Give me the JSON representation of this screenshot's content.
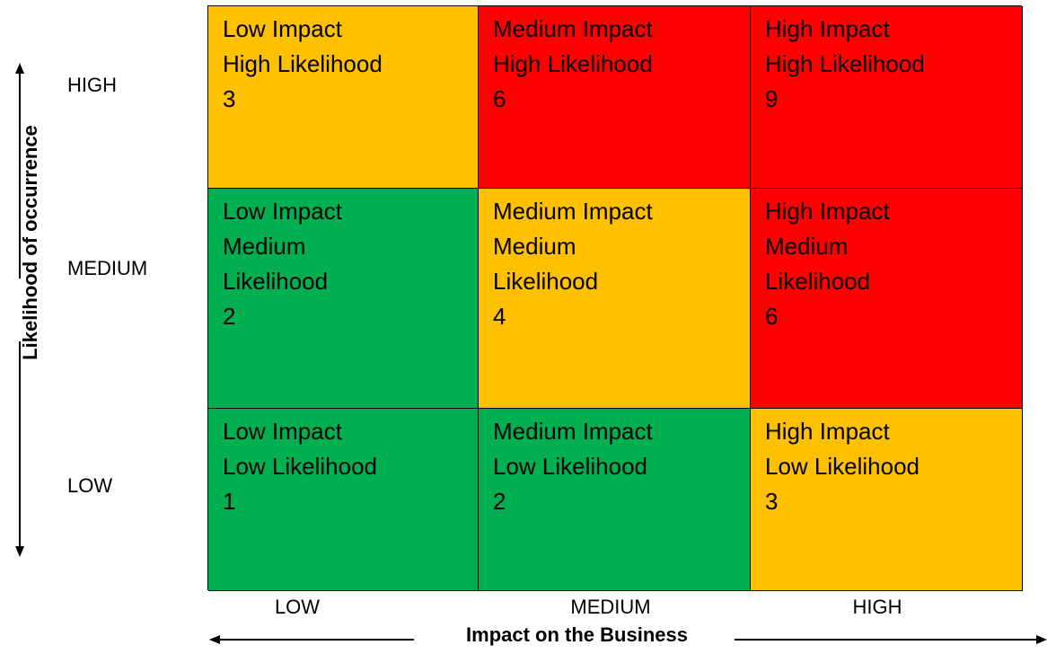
{
  "y_axis": {
    "title": "Likelihood of occurrence",
    "levels": [
      "HIGH",
      "MEDIUM",
      "LOW"
    ]
  },
  "x_axis": {
    "title": "Impact on the Business",
    "levels": [
      "LOW",
      "MEDIUM",
      "HIGH"
    ]
  },
  "colors": {
    "green": "#00b050",
    "amber": "#ffc000",
    "red": "#ff0000"
  },
  "matrix": [
    [
      {
        "text": "Low Impact\nHigh Likelihood\n3",
        "color": "#ffc000"
      },
      {
        "text": "Medium Impact\nHigh Likelihood\n6",
        "color": "#ff0000"
      },
      {
        "text": "High Impact\nHigh Likelihood\n9",
        "color": "#ff0000"
      }
    ],
    [
      {
        "text": "Low Impact\nMedium\nLikelihood\n2",
        "color": "#00b050"
      },
      {
        "text": "Medium Impact\nMedium\nLikelihood\n4",
        "color": "#ffc000"
      },
      {
        "text": "High Impact\nMedium\nLikelihood\n6",
        "color": "#ff0000"
      }
    ],
    [
      {
        "text": "Low Impact\nLow Likelihood\n1",
        "color": "#00b050"
      },
      {
        "text": "Medium Impact\nLow Likelihood\n2",
        "color": "#00b050"
      },
      {
        "text": "High Impact\nLow Likelihood\n3",
        "color": "#ffc000"
      }
    ]
  ]
}
